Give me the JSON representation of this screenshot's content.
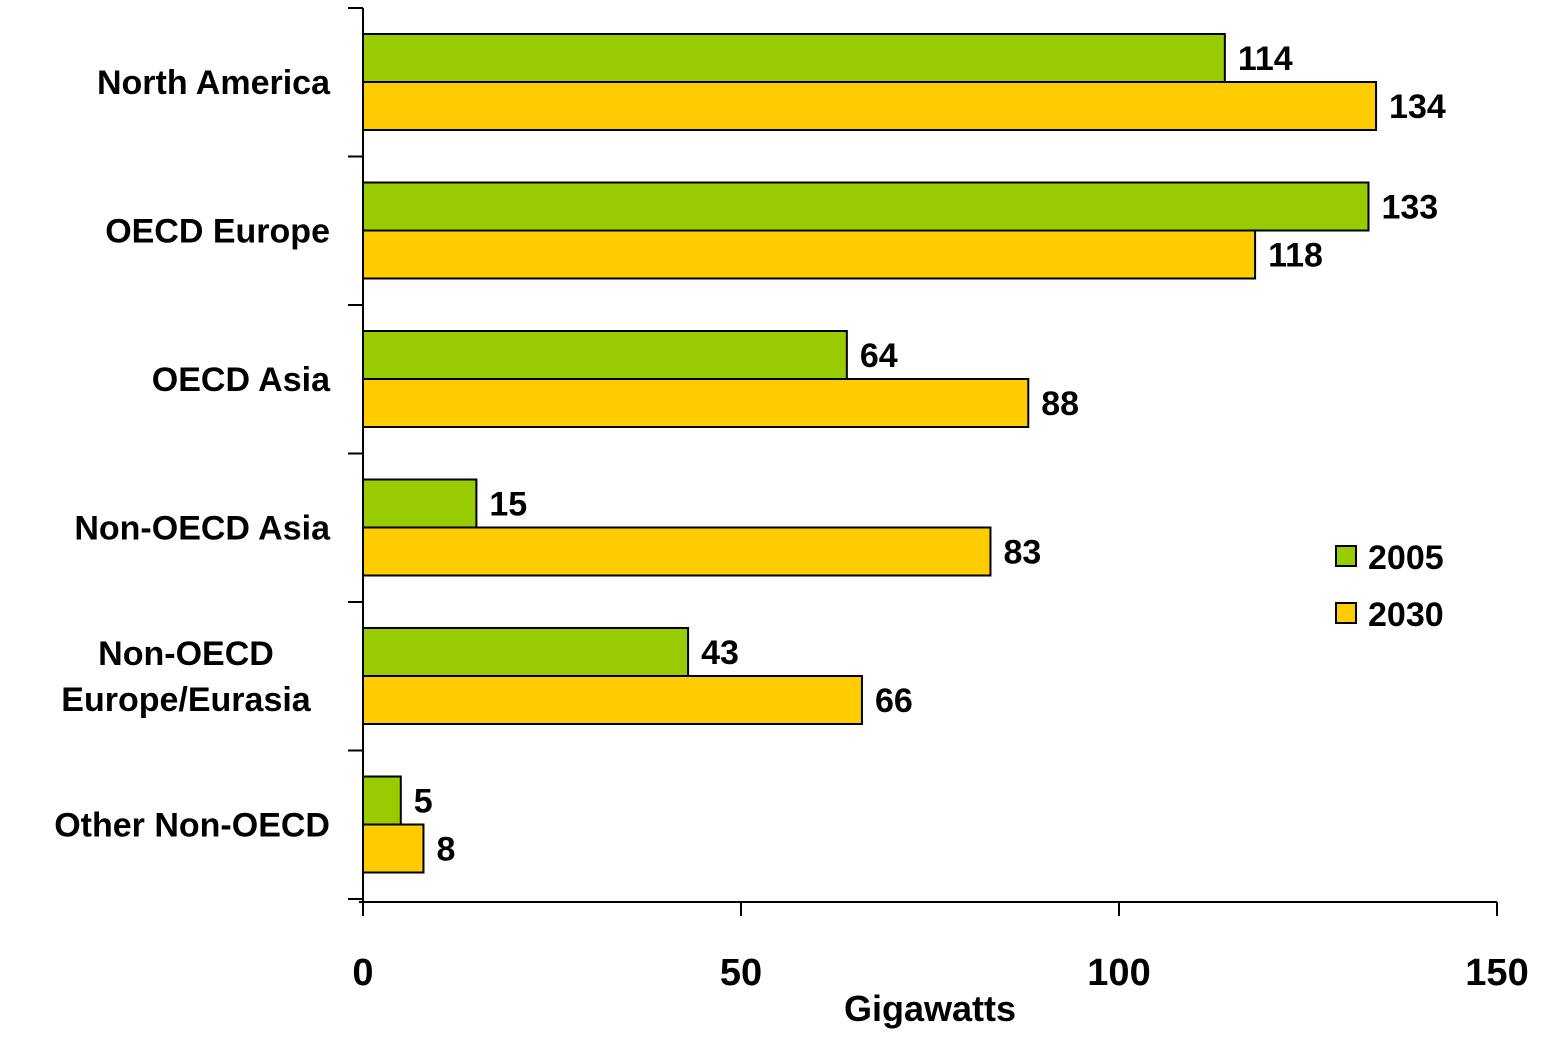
{
  "chart_data": {
    "type": "bar",
    "orientation": "horizontal",
    "title": "",
    "xlabel": "Gigawatts",
    "ylabel": "",
    "xlim": [
      0,
      150
    ],
    "x_ticks": [
      0,
      50,
      100,
      150
    ],
    "grid": false,
    "legend_position": "right",
    "categories": [
      [
        "North America"
      ],
      [
        "OECD Europe"
      ],
      [
        "OECD Asia"
      ],
      [
        "Non-OECD Asia"
      ],
      [
        "Non-OECD",
        "Europe/Eurasia"
      ],
      [
        "Other Non-OECD"
      ]
    ],
    "series": [
      {
        "name": "2005",
        "color": "#99cc00",
        "values": [
          114,
          133,
          64,
          15,
          43,
          5
        ]
      },
      {
        "name": "2030",
        "color": "#ffcc00",
        "values": [
          134,
          118,
          88,
          83,
          66,
          8
        ]
      }
    ]
  }
}
